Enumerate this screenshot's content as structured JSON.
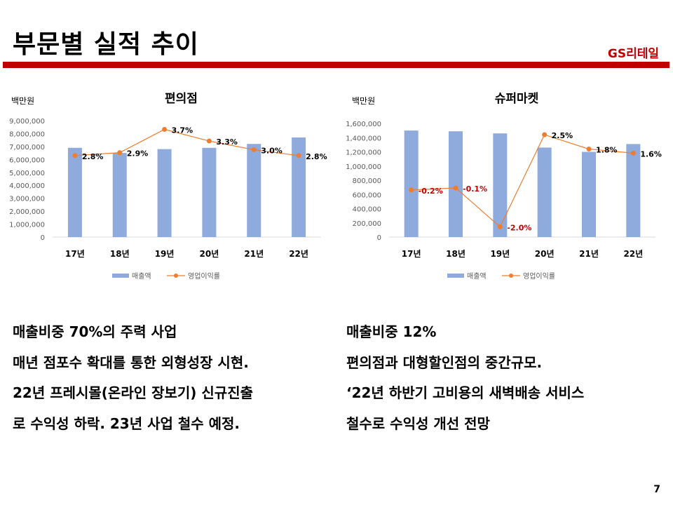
{
  "header": {
    "title": "부문별 실적 추이",
    "brand": "GS리테일"
  },
  "chart_data": [
    {
      "type": "bar",
      "title": "편의점",
      "ylabel": "백만원",
      "categories": [
        "17년",
        "18년",
        "19년",
        "20년",
        "21년",
        "22년"
      ],
      "ylim": [
        0,
        9000000
      ],
      "yticks": [
        "0",
        "1,000,000",
        "2,000,000",
        "3,000,000",
        "4,000,000",
        "5,000,000",
        "6,000,000",
        "7,000,000",
        "8,000,000",
        "9,000,000"
      ],
      "y2lim": [
        0,
        4.0
      ],
      "series": [
        {
          "name": "매출액",
          "type": "bar",
          "color": "#8faadc",
          "values": [
            6900000,
            6500000,
            6800000,
            6900000,
            7200000,
            7700000
          ]
        },
        {
          "name": "영업이익률",
          "type": "line",
          "color": "#ed7d31",
          "axis": "secondary",
          "values": [
            2.8,
            2.9,
            3.7,
            3.3,
            3.0,
            2.8
          ],
          "labels": [
            "2.8%",
            "2.9%",
            "3.7%",
            "3.3%",
            "3.0%",
            "2.8%"
          ]
        }
      ],
      "legend": "bottom"
    },
    {
      "type": "bar",
      "title": "슈퍼마켓",
      "ylabel": "백만원",
      "categories": [
        "17년",
        "18년",
        "19년",
        "20년",
        "21년",
        "22년"
      ],
      "ylim": [
        0,
        1600000
      ],
      "yticks": [
        "0",
        "200,000",
        "400,000",
        "600,000",
        "800,000",
        "1,000,000",
        "1,200,000",
        "1,400,000",
        "1,600,000"
      ],
      "y2lim": [
        -2.5,
        3.05
      ],
      "series": [
        {
          "name": "매출액",
          "type": "bar",
          "color": "#8faadc",
          "values": [
            1500000,
            1490000,
            1460000,
            1260000,
            1200000,
            1310000
          ]
        },
        {
          "name": "영업이익률",
          "type": "line",
          "color": "#ed7d31",
          "axis": "secondary",
          "values": [
            -0.2,
            -0.1,
            -2.0,
            2.5,
            1.8,
            1.6
          ],
          "labels": [
            "-0.2%",
            "-0.1%",
            "-2.0%",
            "2.5%",
            "1.8%",
            "1.6%"
          ]
        }
      ],
      "legend": "bottom"
    }
  ],
  "colors": {
    "negative_label": "#c00000",
    "positive_label": "#000000",
    "accent": "#c00000"
  },
  "left_text": [
    "매출비중 70%의 주력 사업",
    "매년 점포수 확대를 통한 외형성장 시현.",
    "22년 프레시몰(온라인 장보기) 신규진출",
    "로 수익성 하락. 23년 사업 철수 예정."
  ],
  "right_text": [
    "매출비중 12%",
    "편의점과 대형할인점의 중간규모.",
    "‘22년 하반기 고비용의 새벽배송 서비스",
    "철수로 수익성 개선 전망"
  ],
  "page_number": "7"
}
